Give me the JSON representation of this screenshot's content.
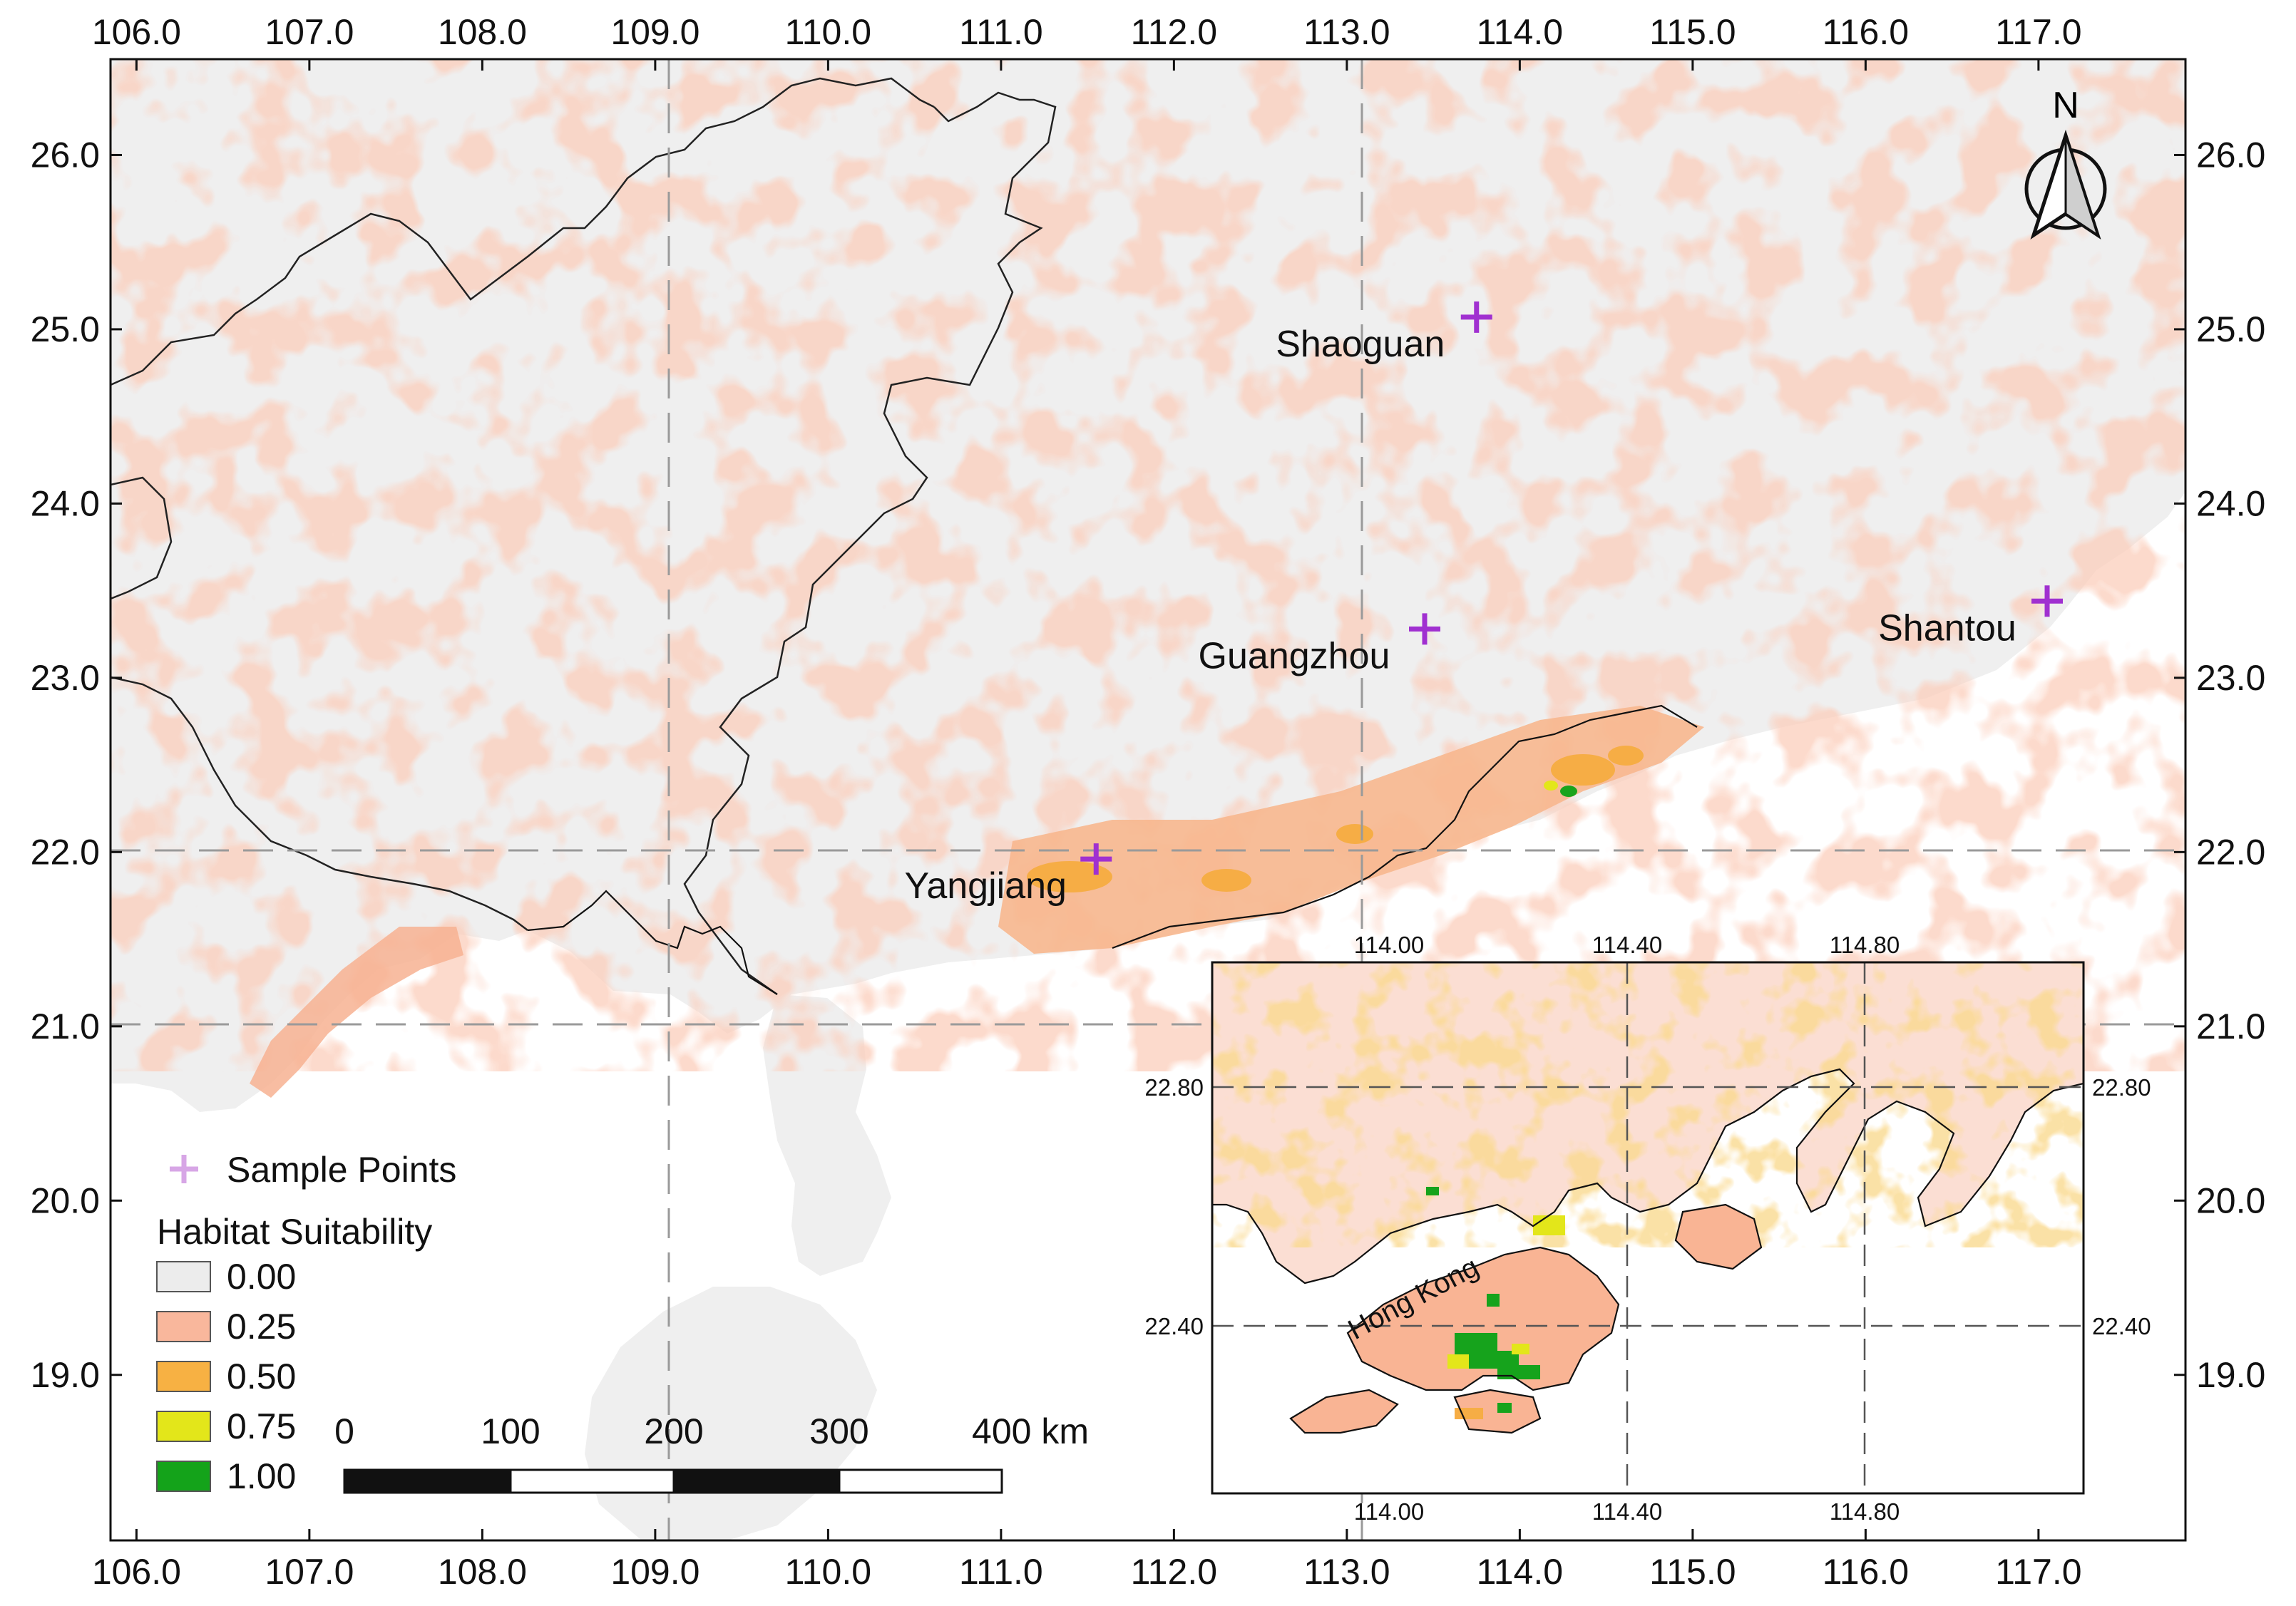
{
  "map": {
    "x_ticks": [
      "106.0",
      "107.0",
      "108.0",
      "109.0",
      "110.0",
      "111.0",
      "112.0",
      "113.0",
      "114.0",
      "115.0",
      "116.0",
      "117.0"
    ],
    "y_ticks": [
      "26.0",
      "25.0",
      "24.0",
      "23.0",
      "22.0",
      "21.0",
      "20.0",
      "19.0"
    ],
    "x_range": [
      105.85,
      117.85
    ],
    "y_range": [
      18.05,
      26.55
    ],
    "north_label": "N",
    "cities": [
      {
        "name": "Shaoguan",
        "lon": 113.75,
        "lat": 25.07
      },
      {
        "name": "Guangzhou",
        "lon": 113.45,
        "lat": 23.28
      },
      {
        "name": "Shantou",
        "lon": 117.05,
        "lat": 23.44
      },
      {
        "name": "Yangjiang",
        "lon": 111.55,
        "lat": 21.96
      }
    ]
  },
  "inset": {
    "x_ticks": [
      "114.00",
      "114.40",
      "114.80"
    ],
    "y_ticks": [
      "22.80",
      "22.40"
    ],
    "place_label": "Hong Kong"
  },
  "legend": {
    "sample_points_label": "Sample Points",
    "title": "Habitat Suitability",
    "classes": [
      {
        "label": "0.00",
        "color": "#ececec"
      },
      {
        "label": "0.25",
        "color": "#f9b79c"
      },
      {
        "label": "0.50",
        "color": "#f7b143"
      },
      {
        "label": "0.75",
        "color": "#e3e61a"
      },
      {
        "label": "1.00",
        "color": "#14a31a"
      }
    ],
    "marker_color": "#a030d0"
  },
  "scalebar": {
    "labels": [
      "0",
      "100",
      "200",
      "300",
      "400 km"
    ]
  }
}
